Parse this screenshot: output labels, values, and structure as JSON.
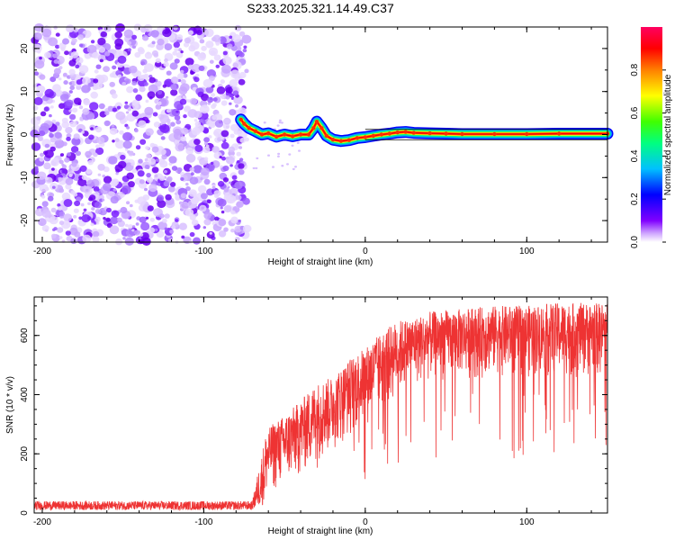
{
  "title": "S233.2025.321.14.49.C37",
  "chart_data": [
    {
      "type": "heatmap",
      "name": "spectrogram",
      "xlabel": "Height of straight line (km)",
      "ylabel": "Frequency (Hz)",
      "xlim": [
        -205,
        150
      ],
      "ylim": [
        -25,
        25
      ],
      "xticks": [
        "-200",
        "-100",
        "0",
        "100"
      ],
      "yticks": [
        "-20",
        "-10",
        "0",
        "10",
        "20"
      ],
      "colorbar": {
        "label": "Normalized spectral amplitude",
        "range": [
          0,
          1
        ],
        "ticks": [
          "0.0",
          "0.2",
          "0.4",
          "0.6",
          "0.8"
        ],
        "colormap": [
          "#ffffff",
          "#8000ff",
          "#0000ff",
          "#00ffff",
          "#00ff00",
          "#ffff00",
          "#ff8000",
          "#ff0000",
          "#ff0080"
        ]
      },
      "noise_region": {
        "x_from": -205,
        "x_to": -73
      },
      "signal_track": {
        "x": [
          -77,
          -75,
          -72,
          -68,
          -64,
          -60,
          -55,
          -50,
          -45,
          -40,
          -35,
          -32,
          -30,
          -27,
          -24,
          -20,
          -15,
          -10,
          -5,
          0,
          5,
          10,
          15,
          20,
          25,
          30,
          40,
          50,
          60,
          80,
          100,
          120,
          150
        ],
        "y": [
          3.5,
          2.5,
          1.5,
          0.8,
          0,
          0.3,
          -0.5,
          0,
          -0.4,
          0,
          0,
          1.5,
          3,
          1.5,
          -0.3,
          -1.2,
          -1.5,
          -1.3,
          -0.8,
          -0.6,
          -0.3,
          0,
          0.2,
          0.5,
          0.6,
          0.4,
          0.3,
          0.2,
          0.1,
          0.1,
          0.1,
          0.2,
          0.2
        ]
      }
    },
    {
      "type": "line",
      "name": "snr",
      "xlabel": "Height of straight line (km)",
      "ylabel": "SNR (10 * v/v)",
      "xlim": [
        -205,
        150
      ],
      "ylim": [
        0,
        730
      ],
      "xticks": [
        "-200",
        "-100",
        "0",
        "100"
      ],
      "yticks": [
        "0",
        "200",
        "400",
        "600"
      ],
      "color": "#ee3333",
      "envelope": {
        "x": [
          -205,
          -70,
          -62,
          -58,
          -50,
          -40,
          -30,
          -20,
          -10,
          0,
          10,
          20,
          30,
          40,
          60,
          80,
          100,
          120,
          150
        ],
        "low": [
          10,
          10,
          30,
          60,
          80,
          110,
          150,
          200,
          250,
          280,
          330,
          380,
          420,
          440,
          450,
          450,
          450,
          450,
          450
        ],
        "high": [
          40,
          40,
          260,
          300,
          330,
          380,
          440,
          460,
          520,
          560,
          610,
          650,
          660,
          680,
          690,
          700,
          700,
          710,
          710
        ]
      }
    }
  ]
}
